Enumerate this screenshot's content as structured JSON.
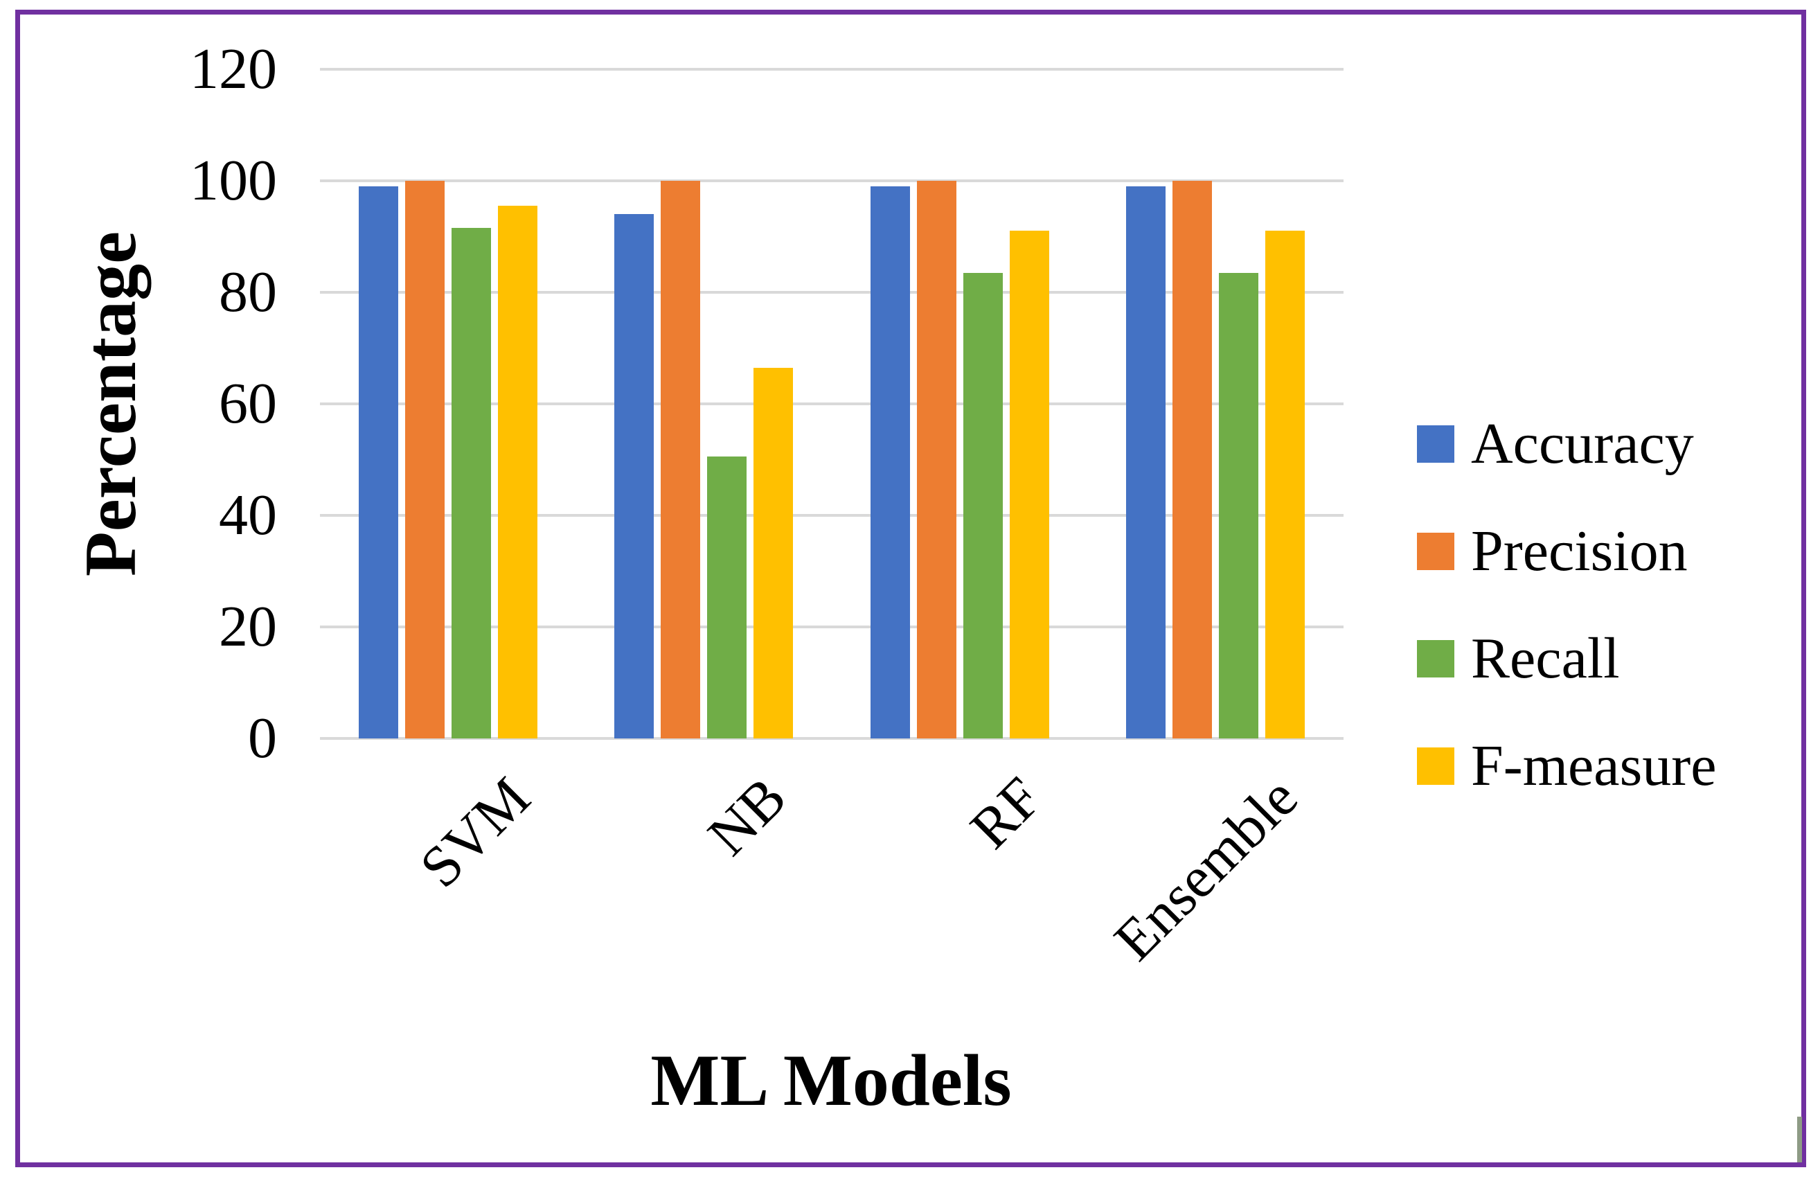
{
  "figure": {
    "border_color": "#7030A0",
    "background_color": "#FFFFFF",
    "right_border_artifact_color": "#8E9B85",
    "text_color": "#000000"
  },
  "chart_data": {
    "type": "bar",
    "title": "",
    "categories": [
      "SVM",
      "NB",
      "RF",
      "Ensemble"
    ],
    "series": [
      {
        "name": "Accuracy",
        "color": "#4472C4",
        "values": [
          99,
          94,
          99,
          99
        ]
      },
      {
        "name": "Precision",
        "color": "#ED7D31",
        "values": [
          100,
          100,
          100,
          100
        ]
      },
      {
        "name": "Recall",
        "color": "#70AD47",
        "values": [
          91.5,
          50.5,
          83.5,
          83.5
        ]
      },
      {
        "name": "F-measure",
        "color": "#FFC000",
        "values": [
          95.5,
          66.5,
          91,
          91
        ]
      }
    ],
    "xlabel": "ML Models",
    "ylabel": "Percentage",
    "ylim": [
      0,
      120
    ],
    "yticks": [
      0,
      20,
      40,
      60,
      80,
      100,
      120
    ],
    "grid": true,
    "gridline_color": "#D9D9D9",
    "legend_position": "right",
    "category_label_rotation_deg": -45
  }
}
